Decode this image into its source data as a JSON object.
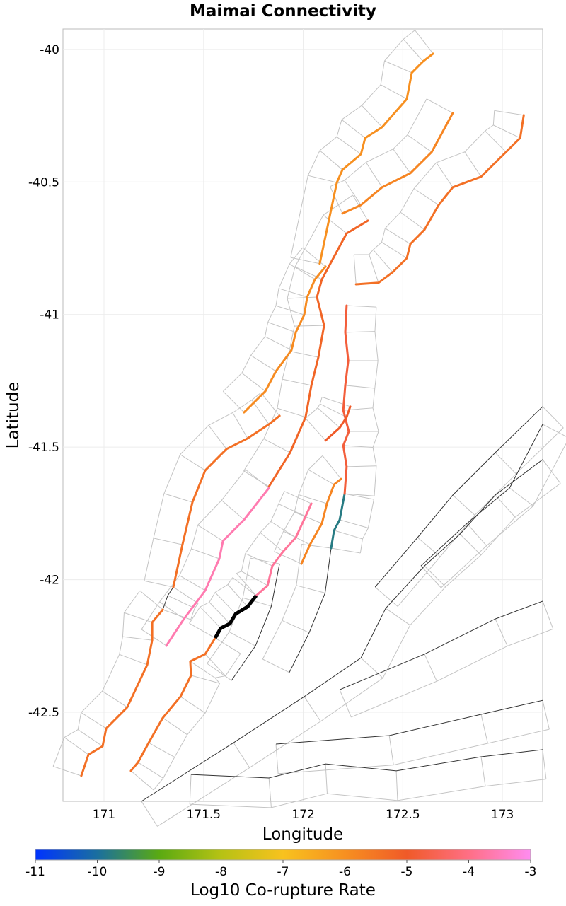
{
  "chart_data": {
    "type": "map",
    "title": "Maimai Connectivity",
    "xlabel": "Longitude",
    "ylabel": "Latitude",
    "xlim": [
      170.794,
      173.202
    ],
    "ylim": [
      -42.836,
      -39.923
    ],
    "xticks": [
      171,
      171.5,
      172,
      172.5,
      173
    ],
    "xtick_labels": [
      "171",
      "171.5",
      "172",
      "172.5",
      "173"
    ],
    "yticks": [
      -40,
      -40.5,
      -41,
      -41.5,
      -42,
      -42.5
    ],
    "ytick_labels": [
      "-40",
      "-40.5",
      "-41",
      "-41.5",
      "-42",
      "-42.5"
    ],
    "grid": true,
    "colorbar": {
      "label": "Log10 Co-rupture Rate",
      "range": [
        -11,
        -3
      ],
      "ticks": [
        -11,
        -10,
        -9,
        -8,
        -7,
        -6,
        -5,
        -4,
        -3
      ],
      "tick_labels": [
        "-11",
        "-10",
        "-9",
        "-8",
        "-7",
        "-6",
        "-5",
        "-4",
        "-3"
      ],
      "colors": [
        "#0033ff",
        "#1a6f9f",
        "#5aaa12",
        "#b6c214",
        "#f8c21e",
        "#f79020",
        "#f05a28",
        "#ff6f85",
        "#ff8cf0"
      ]
    },
    "source_color": "#000000",
    "ruptured_sections": [
      {
        "name": "section-a",
        "value": -6.0,
        "coords": [
          [
            172.083,
            -40.808
          ],
          [
            172.169,
            -40.502
          ],
          [
            172.197,
            -40.454
          ],
          [
            172.29,
            -40.395
          ],
          [
            172.311,
            -40.334
          ],
          [
            172.396,
            -40.293
          ],
          [
            172.52,
            -40.187
          ],
          [
            172.545,
            -40.088
          ],
          [
            172.602,
            -40.045
          ],
          [
            172.652,
            -40.016
          ]
        ]
      },
      {
        "name": "section-b",
        "value": -5.8,
        "coords": [
          [
            172.197,
            -40.619
          ],
          [
            172.29,
            -40.587
          ],
          [
            172.396,
            -40.52
          ],
          [
            172.538,
            -40.467
          ],
          [
            172.645,
            -40.387
          ],
          [
            172.751,
            -40.24
          ]
        ]
      },
      {
        "name": "section-c",
        "value": -5.4,
        "coords": [
          [
            172.265,
            -40.886
          ],
          [
            172.378,
            -40.88
          ],
          [
            172.449,
            -40.84
          ],
          [
            172.52,
            -40.787
          ],
          [
            172.538,
            -40.734
          ],
          [
            172.609,
            -40.68
          ],
          [
            172.68,
            -40.587
          ],
          [
            172.751,
            -40.52
          ],
          [
            172.893,
            -40.48
          ],
          [
            173.018,
            -40.387
          ],
          [
            173.089,
            -40.334
          ],
          [
            173.107,
            -40.248
          ]
        ]
      },
      {
        "name": "section-d",
        "value": -5.9,
        "coords": [
          [
            171.703,
            -41.369
          ],
          [
            171.81,
            -41.289
          ],
          [
            171.863,
            -41.214
          ],
          [
            171.941,
            -41.134
          ],
          [
            171.963,
            -41.067
          ],
          [
            172.005,
            -41.001
          ],
          [
            172.02,
            -40.934
          ],
          [
            172.059,
            -40.867
          ],
          [
            172.112,
            -40.819
          ]
        ]
      },
      {
        "name": "section-e",
        "value": -5.2,
        "coords": [
          [
            171.828,
            -41.649
          ],
          [
            171.934,
            -41.521
          ],
          [
            172.012,
            -41.387
          ],
          [
            172.041,
            -41.267
          ],
          [
            172.076,
            -41.161
          ],
          [
            172.105,
            -41.041
          ],
          [
            172.069,
            -40.934
          ],
          [
            172.094,
            -40.867
          ],
          [
            172.218,
            -40.694
          ],
          [
            172.325,
            -40.646
          ]
        ]
      },
      {
        "name": "section-f",
        "value": -5.4,
        "coords": [
          [
            170.886,
            -42.74
          ],
          [
            170.922,
            -42.66
          ],
          [
            170.993,
            -42.628
          ],
          [
            171.011,
            -42.561
          ],
          [
            171.117,
            -42.481
          ],
          [
            171.217,
            -42.321
          ],
          [
            171.242,
            -42.228
          ],
          [
            171.242,
            -42.161
          ],
          [
            171.295,
            -42.113
          ]
        ]
      },
      {
        "name": "section-f2",
        "value": -5.4,
        "coords": [
          [
            171.348,
            -42.028
          ],
          [
            171.394,
            -41.868
          ],
          [
            171.444,
            -41.708
          ],
          [
            171.508,
            -41.588
          ],
          [
            171.615,
            -41.507
          ],
          [
            171.721,
            -41.467
          ],
          [
            171.828,
            -41.414
          ],
          [
            171.881,
            -41.382
          ]
        ]
      },
      {
        "name": "section-g",
        "value": -3.6,
        "coords": [
          [
            171.313,
            -42.249
          ],
          [
            171.401,
            -42.148
          ],
          [
            171.508,
            -42.041
          ],
          [
            171.579,
            -41.921
          ],
          [
            171.597,
            -41.854
          ],
          [
            171.703,
            -41.774
          ],
          [
            171.828,
            -41.654
          ]
        ]
      },
      {
        "name": "section-i",
        "value": -3.8,
        "coords": [
          [
            171.764,
            -42.06
          ],
          [
            171.821,
            -42.022
          ],
          [
            171.845,
            -41.948
          ],
          [
            171.899,
            -41.894
          ],
          [
            171.963,
            -41.841
          ],
          [
            172.012,
            -41.761
          ],
          [
            172.041,
            -41.713
          ]
        ]
      },
      {
        "name": "section-j",
        "value": -5.4,
        "coords": [
          [
            171.558,
            -42.22
          ],
          [
            171.508,
            -42.281
          ],
          [
            171.433,
            -42.308
          ],
          [
            171.437,
            -42.361
          ],
          [
            171.384,
            -42.441
          ],
          [
            171.295,
            -42.521
          ],
          [
            171.224,
            -42.615
          ],
          [
            171.171,
            -42.689
          ],
          [
            171.135,
            -42.721
          ]
        ]
      },
      {
        "name": "section-k",
        "value": -5.8,
        "coords": [
          [
            171.991,
            -41.94
          ],
          [
            172.034,
            -41.868
          ],
          [
            172.094,
            -41.788
          ],
          [
            172.119,
            -41.713
          ],
          [
            172.155,
            -41.641
          ],
          [
            172.19,
            -41.62
          ]
        ]
      },
      {
        "name": "section-l",
        "value": -9.8,
        "coords": [
          [
            172.208,
            -41.676
          ],
          [
            172.183,
            -41.774
          ],
          [
            172.155,
            -41.814
          ],
          [
            172.14,
            -41.881
          ]
        ]
      },
      {
        "name": "section-m",
        "value": -4.8,
        "coords": [
          [
            172.218,
            -40.966
          ],
          [
            172.211,
            -41.067
          ],
          [
            172.226,
            -41.174
          ],
          [
            172.211,
            -41.267
          ],
          [
            172.201,
            -41.361
          ],
          [
            172.229,
            -41.441
          ],
          [
            172.201,
            -41.494
          ],
          [
            172.218,
            -41.574
          ],
          [
            172.208,
            -41.676
          ]
        ]
      },
      {
        "name": "section-n",
        "value": -5.0,
        "coords": [
          [
            172.112,
            -41.475
          ],
          [
            172.183,
            -41.427
          ],
          [
            172.218,
            -41.387
          ],
          [
            172.236,
            -41.347
          ]
        ]
      }
    ],
    "source_section": {
      "name": "maimai",
      "coords": [
        [
          171.558,
          -42.22
        ],
        [
          171.586,
          -42.183
        ],
        [
          171.632,
          -42.166
        ],
        [
          171.661,
          -42.129
        ],
        [
          171.721,
          -42.102
        ],
        [
          171.764,
          -42.06
        ]
      ]
    },
    "other_faults": [
      [
        [
          171.188,
          -42.836
        ],
        [
          171.65,
          -42.615
        ],
        [
          172.005,
          -42.441
        ],
        [
          172.29,
          -42.295
        ],
        [
          172.414,
          -42.108
        ],
        [
          172.609,
          -41.948
        ],
        [
          172.787,
          -41.828
        ],
        [
          172.964,
          -41.681
        ],
        [
          173.202,
          -41.547
        ]
      ],
      [
        [
          172.183,
          -42.415
        ],
        [
          172.609,
          -42.281
        ],
        [
          172.964,
          -42.148
        ],
        [
          173.202,
          -42.081
        ]
      ],
      [
        [
          171.863,
          -42.62
        ],
        [
          172.432,
          -42.588
        ],
        [
          172.893,
          -42.508
        ],
        [
          173.202,
          -42.455
        ]
      ],
      [
        [
          172.361,
          -42.028
        ],
        [
          172.574,
          -41.841
        ],
        [
          172.751,
          -41.681
        ],
        [
          172.964,
          -41.521
        ],
        [
          173.202,
          -41.347
        ]
      ],
      [
        [
          172.591,
          -41.948
        ],
        [
          172.822,
          -41.788
        ],
        [
          173.036,
          -41.654
        ],
        [
          173.202,
          -41.414
        ]
      ],
      [
        [
          171.437,
          -42.735
        ],
        [
          171.828,
          -42.748
        ],
        [
          172.112,
          -42.695
        ],
        [
          172.467,
          -42.721
        ],
        [
          172.893,
          -42.668
        ],
        [
          173.202,
          -42.641
        ]
      ],
      [
        [
          171.295,
          -42.113
        ],
        [
          171.32,
          -42.06
        ],
        [
          171.348,
          -42.028
        ]
      ],
      [
        [
          171.881,
          -41.94
        ],
        [
          171.84,
          -42.1
        ],
        [
          171.76,
          -42.25
        ],
        [
          171.64,
          -42.38
        ]
      ],
      [
        [
          172.14,
          -41.881
        ],
        [
          172.11,
          -42.05
        ],
        [
          172.03,
          -42.2
        ],
        [
          171.93,
          -42.35
        ]
      ]
    ]
  }
}
